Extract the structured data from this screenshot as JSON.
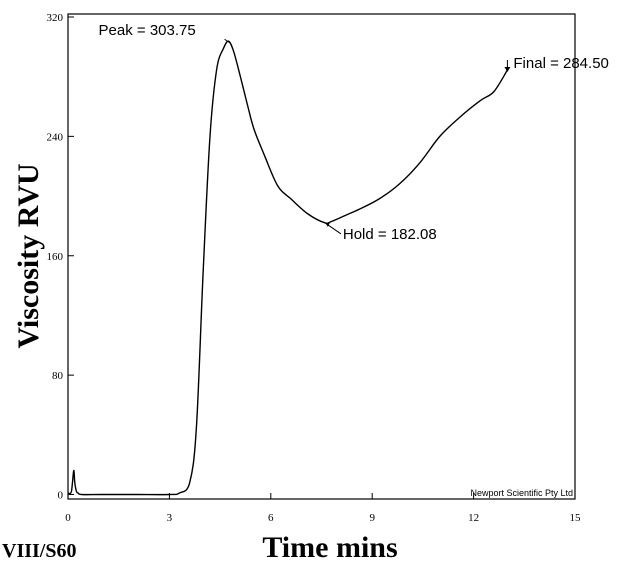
{
  "chart_data": {
    "type": "line",
    "xlabel": "Time mins",
    "ylabel": "Viscosity RVU",
    "xlim": [
      0,
      15
    ],
    "ylim": [
      -3,
      322
    ],
    "x_ticks": [
      0,
      3,
      6,
      9,
      12,
      15
    ],
    "y_ticks": [
      0,
      80,
      160,
      240,
      320
    ],
    "grid": false,
    "series": [
      {
        "x": [
          0.0,
          0.1,
          0.17,
          0.2,
          0.25,
          0.3,
          0.4,
          1.0,
          2.0,
          3.0,
          3.3,
          3.6,
          3.8,
          4.0,
          4.2,
          4.4,
          4.6,
          4.75,
          4.9,
          5.1,
          5.3,
          5.5,
          5.8,
          6.2,
          6.6,
          7.1,
          7.6,
          7.8,
          8.2,
          8.6,
          9.2,
          9.8,
          10.4,
          11.0,
          11.6,
          12.2,
          12.6,
          13.0
        ],
        "y": [
          1,
          2,
          16,
          8,
          2,
          1,
          0,
          0,
          0,
          0,
          1,
          8,
          45,
          150,
          240,
          285,
          299,
          303.75,
          297,
          280,
          262,
          245,
          228,
          207,
          198,
          188,
          182.08,
          183,
          187,
          191,
          198,
          208,
          222,
          240,
          253,
          264,
          270,
          284.5
        ]
      }
    ],
    "annotations": [
      {
        "text": "Peak = 303.75",
        "x": 4.75,
        "y": 303.75
      },
      {
        "text": "Hold = 182.08",
        "x": 7.6,
        "y": 182.08
      },
      {
        "text": "Final = 284.50",
        "x": 13.0,
        "y": 284.5
      }
    ],
    "credit": "Newport Scientific Pty Ltd",
    "sample_label": "VIII/S60"
  }
}
